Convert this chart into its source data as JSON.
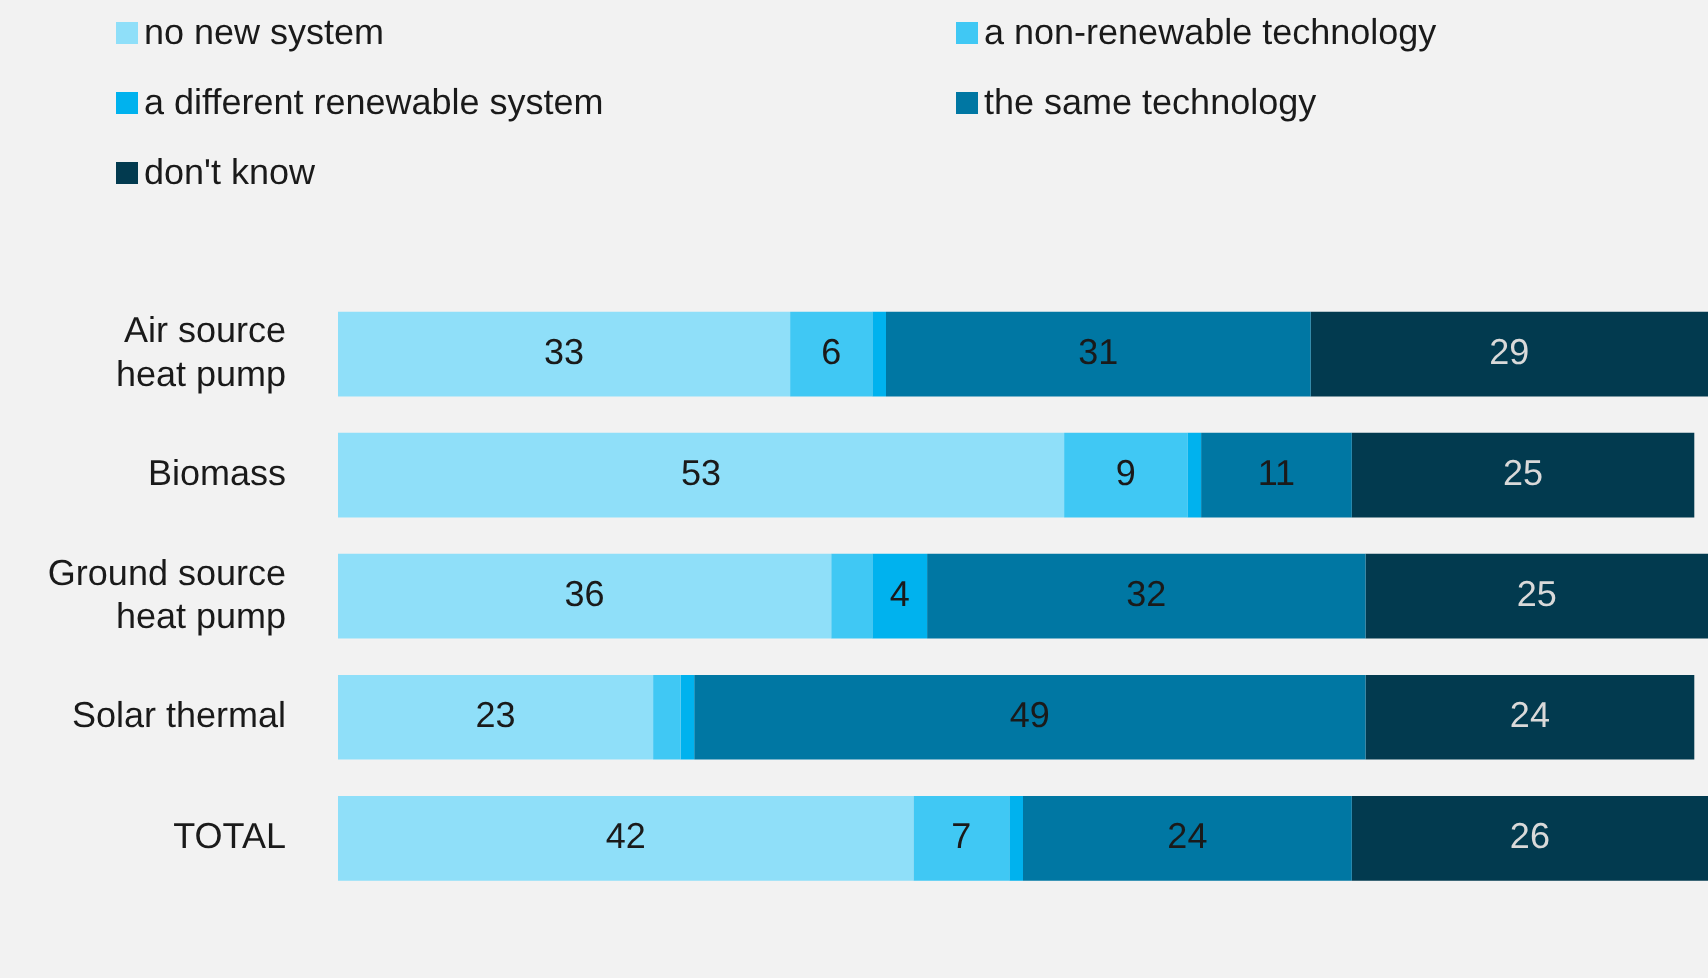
{
  "chart_data": {
    "type": "bar",
    "orientation": "horizontal",
    "stacked": true,
    "legend": "top left",
    "tick_labels": "y",
    "xlim": [
      0,
      100
    ],
    "categories": [
      "Air source heat pump",
      "Biomass",
      "Ground source heat pump",
      "Solar thermal",
      "TOTAL"
    ],
    "series": [
      {
        "name": "no new system",
        "color": "#8fdff9",
        "values": [
          33,
          53,
          36,
          23,
          42
        ],
        "value_labels": [
          "33",
          "53",
          "36",
          "23",
          "42"
        ]
      },
      {
        "name": "a non-renewable technology",
        "color": "#40c8f4",
        "values": [
          6,
          9,
          3,
          2,
          7
        ],
        "value_labels": [
          "6",
          "9",
          null,
          null,
          "7"
        ]
      },
      {
        "name": "a different renewable system",
        "color": "#00b2ee",
        "values": [
          1,
          1,
          4,
          1,
          1
        ],
        "value_labels": [
          null,
          null,
          "4",
          null,
          null
        ]
      },
      {
        "name": "the same technology",
        "color": "#0077a3",
        "values": [
          31,
          11,
          32,
          49,
          24
        ],
        "value_labels": [
          "31",
          "11",
          "32",
          "49",
          "24"
        ]
      },
      {
        "name": "don't know",
        "color": "#023a4f",
        "values": [
          29,
          25,
          25,
          24,
          26
        ],
        "value_labels": [
          "29",
          "25",
          "25",
          "24",
          "26"
        ]
      }
    ]
  }
}
